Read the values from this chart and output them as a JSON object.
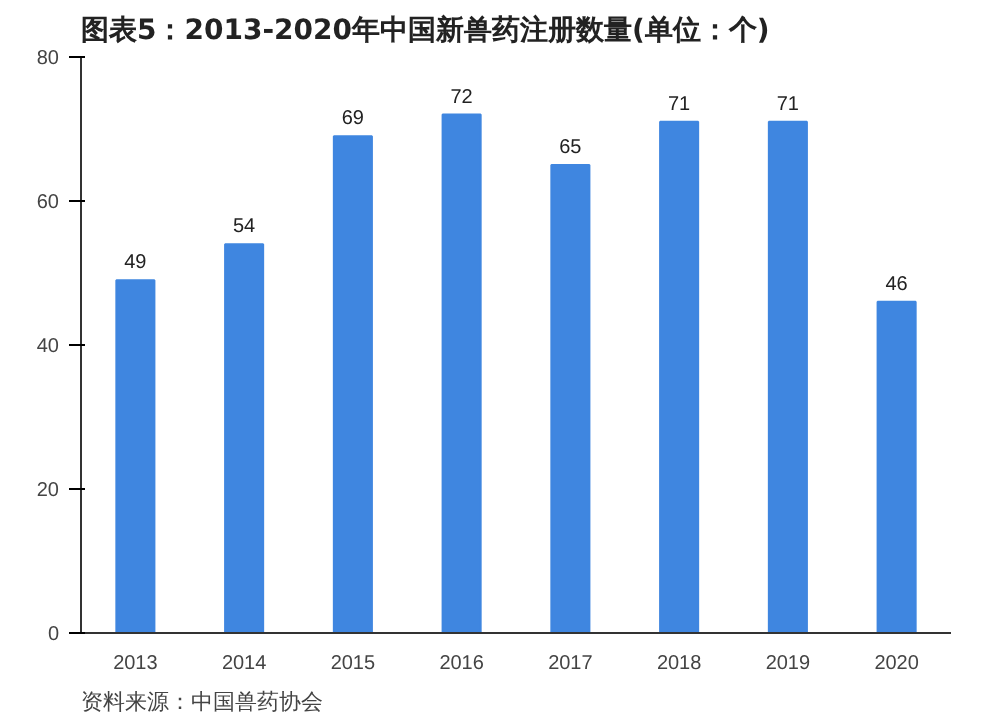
{
  "chart_data": {
    "type": "bar",
    "title": "图表5：2013-2020年中国新兽药注册数量(单位：个)",
    "categories": [
      "2013",
      "2014",
      "2015",
      "2016",
      "2017",
      "2018",
      "2019",
      "2020"
    ],
    "values": [
      49,
      54,
      69,
      72,
      65,
      71,
      71,
      46
    ],
    "color": "#3f86e0",
    "ylim": [
      0,
      80
    ],
    "yticks": [
      0,
      20,
      40,
      60,
      80
    ],
    "data_labels": true,
    "annotations": [
      "资料来源：中国兽药协会"
    ]
  }
}
